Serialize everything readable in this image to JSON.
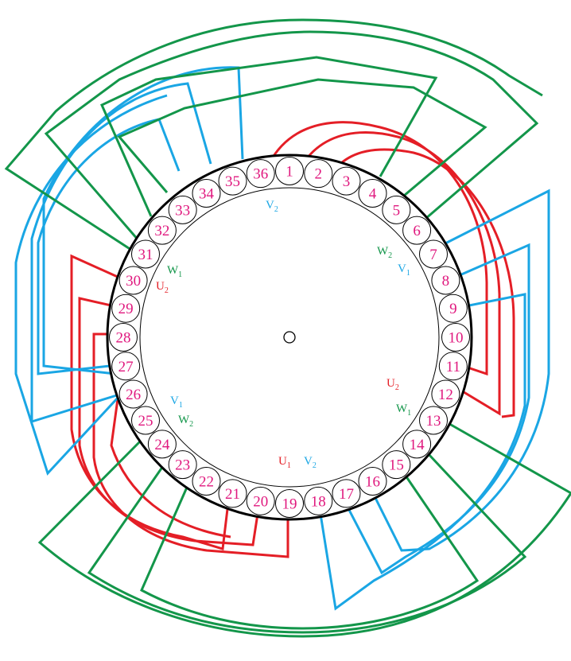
{
  "colors": {
    "U": "#e41e26",
    "V": "#1aa6e4",
    "W": "#13964a",
    "slot_number": "#e0187e",
    "outline": "#000000"
  },
  "slots": [
    "1",
    "2",
    "3",
    "4",
    "5",
    "6",
    "7",
    "8",
    "9",
    "10",
    "11",
    "12",
    "13",
    "14",
    "15",
    "16",
    "17",
    "18",
    "19",
    "20",
    "21",
    "22",
    "23",
    "24",
    "25",
    "26",
    "27",
    "28",
    "29",
    "30",
    "31",
    "32",
    "33",
    "34",
    "35",
    "36"
  ],
  "labels": [
    {
      "phase": "V",
      "letter": "V",
      "sub": "2",
      "anchor": "top"
    },
    {
      "phase": "W",
      "letter": "W",
      "sub": "2",
      "anchor": "upper-right-1"
    },
    {
      "phase": "V",
      "letter": "V",
      "sub": "1",
      "anchor": "upper-right-2"
    },
    {
      "phase": "W",
      "letter": "W",
      "sub": "1",
      "anchor": "upper-left-1"
    },
    {
      "phase": "U",
      "letter": "U",
      "sub": "2",
      "anchor": "upper-left-2"
    },
    {
      "phase": "U",
      "letter": "U",
      "sub": "2",
      "anchor": "lower-right-1"
    },
    {
      "phase": "W",
      "letter": "W",
      "sub": "1",
      "anchor": "lower-right-2"
    },
    {
      "phase": "V",
      "letter": "V",
      "sub": "1",
      "anchor": "lower-left-1"
    },
    {
      "phase": "W",
      "letter": "W",
      "sub": "2",
      "anchor": "lower-left-2"
    },
    {
      "phase": "U",
      "letter": "U",
      "sub": "1",
      "anchor": "bottom-1"
    },
    {
      "phase": "V",
      "letter": "V",
      "sub": "2",
      "anchor": "bottom-2"
    }
  ]
}
